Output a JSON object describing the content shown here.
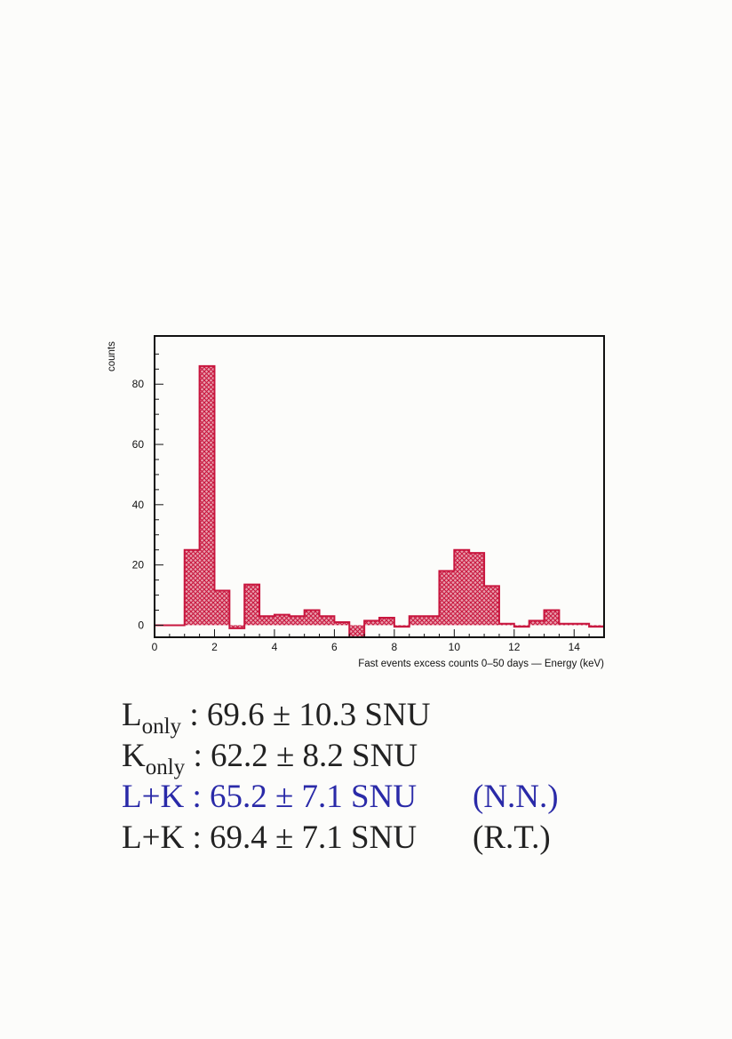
{
  "chart_data": {
    "type": "bar",
    "histogram": true,
    "xlabel": "Fast events excess counts 0–50 days — Energy (keV)",
    "ylabel": "counts",
    "xlim": [
      0,
      15
    ],
    "ylim": [
      -4,
      96
    ],
    "xticks": [
      "0",
      "2",
      "4",
      "6",
      "8",
      "10",
      "12",
      "14"
    ],
    "yticks": [
      "0",
      "20",
      "40",
      "60",
      "80"
    ],
    "bin_width": 0.5,
    "bins_start": [
      0,
      0.5,
      1.0,
      1.5,
      2.0,
      2.5,
      3.0,
      3.5,
      4.0,
      4.5,
      5.0,
      5.5,
      6.0,
      6.5,
      7.0,
      7.5,
      8.0,
      8.5,
      9.0,
      9.5,
      10.0,
      10.5,
      11.0,
      11.5,
      12.0,
      12.5,
      13.0,
      13.5,
      14.0,
      14.5
    ],
    "values": [
      0,
      0,
      25,
      86,
      11.5,
      -1,
      13.5,
      3,
      3.5,
      3,
      5,
      3,
      1,
      -4,
      1.5,
      2.5,
      -0.5,
      3,
      3,
      18,
      25,
      24,
      13,
      0.5,
      -0.5,
      1.5,
      5,
      0.5,
      0.5,
      -0.5
    ],
    "color": "#d8274a"
  },
  "results": [
    {
      "main": "L",
      "sub": "only",
      "rest": " : 69.6 ± 10.3 SNU",
      "note": ""
    },
    {
      "main": "K",
      "sub": "only",
      "rest": " : 62.2 ± 8.2 SNU",
      "note": ""
    },
    {
      "main": "L+K",
      "sub": "",
      "rest": " : 65.2 ± 7.1 SNU",
      "note": "(N.N.)"
    },
    {
      "main": "L+K",
      "sub": "",
      "rest": " : 69.4 ± 7.1 SNU",
      "note": "(R.T.)"
    }
  ]
}
